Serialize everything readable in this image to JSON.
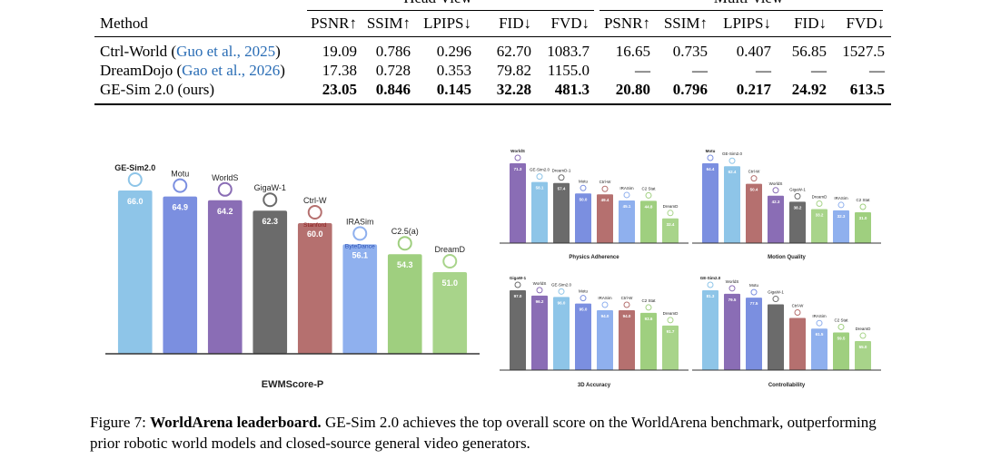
{
  "table": {
    "group_headers": [
      "Head View",
      "Multi-view"
    ],
    "columns": [
      "Method",
      "PSNR↑",
      "SSIM↑",
      "LPIPS↓",
      "FID↓",
      "FVD↓",
      "PSNR↑",
      "SSIM↑",
      "LPIPS↓",
      "FID↓",
      "FVD↓"
    ],
    "rows": [
      {
        "method": "Ctrl-World (",
        "cite": "Guo et al., 2025",
        "close": ")",
        "values": [
          "19.09",
          "0.786",
          "0.296",
          "62.70",
          "1083.7",
          "16.65",
          "0.735",
          "0.407",
          "56.85",
          "1527.5"
        ],
        "bold": false
      },
      {
        "method": "DreamDojo (",
        "cite": "Gao et al., 2026",
        "close": ")",
        "values": [
          "17.38",
          "0.728",
          "0.353",
          "79.82",
          "1155.0",
          "—",
          "—",
          "—",
          "—",
          "—"
        ],
        "bold": false
      },
      {
        "method": "GE-Sim 2.0 (ours)",
        "cite": "",
        "close": "",
        "values": [
          "23.05",
          "0.846",
          "0.145",
          "32.28",
          "481.3",
          "20.80",
          "0.796",
          "0.217",
          "24.92",
          "613.5"
        ],
        "bold": true
      }
    ]
  },
  "chart_data": [
    {
      "type": "bar",
      "xlabel": "EWMScore-P",
      "categories": [
        "GE-Sim2.0",
        "Motu",
        "WorldS",
        "GigaW-1",
        "Ctrl-W",
        "IRASim",
        "C2.5(a)",
        "DreamD"
      ],
      "values": [
        66.0,
        64.9,
        64.2,
        62.3,
        60.0,
        56.1,
        54.3,
        51.0
      ],
      "value_labels": [
        "66.0",
        "64.9",
        "64.2",
        "62.3",
        "60.0",
        "56.1",
        "54.3",
        "51.0"
      ],
      "sub_labels": {
        "Ctrl-W": "Stanford",
        "IRASim": "ByteDance"
      },
      "colors": [
        "#8ec5e8",
        "#7b8fe0",
        "#8a6db5",
        "#6b6b6b",
        "#b5706f",
        "#8fb0ee",
        "#9fcf7f",
        "#a8d48a"
      ]
    },
    {
      "type": "bar",
      "xlabel": "Physics Adherence",
      "categories": [
        "WorldS",
        "GE-Sim2.0",
        "DreamD-1",
        "Motu",
        "Ctrl-W",
        "IRASim",
        "C2 Stat",
        "DreamD"
      ],
      "values": [
        71.3,
        58.1,
        57.4,
        50.0,
        49.4,
        45.1,
        44.8,
        32.4
      ],
      "value_labels": [
        "71.3",
        "58.1",
        "57.4",
        "50.0",
        "49.4",
        "45.1",
        "44.8",
        "32.4"
      ],
      "colors": [
        "#8a6db5",
        "#8ec5e8",
        "#6b6b6b",
        "#7b8fe0",
        "#b5706f",
        "#8fb0ee",
        "#9fcf7f",
        "#a8d48a"
      ]
    },
    {
      "type": "bar",
      "xlabel": "Motion Quality",
      "categories": [
        "Motu",
        "GE-Sim2.0",
        "Ctrl-W",
        "WorldS",
        "GigaW-1",
        "DreamD",
        "IRASim",
        "C2 Stat"
      ],
      "values": [
        64.4,
        62.4,
        50.4,
        42.3,
        38.2,
        33.2,
        32.3,
        31.0
      ],
      "value_labels": [
        "64.4",
        "62.4",
        "50.4",
        "42.3",
        "38.2",
        "33.2",
        "32.3",
        "31.0"
      ],
      "colors": [
        "#7b8fe0",
        "#8ec5e8",
        "#b5706f",
        "#8a6db5",
        "#6b6b6b",
        "#a8d48a",
        "#8fb0ee",
        "#9fcf7f"
      ]
    },
    {
      "type": "bar",
      "xlabel": "3D Accuracy",
      "categories": [
        "GigaW-1",
        "WorldS",
        "GE-Sim2.0",
        "Motu",
        "IRASim",
        "Ctrl-W",
        "C2 Stat",
        "DreamD"
      ],
      "values": [
        97.0,
        96.2,
        96.0,
        95.0,
        94.0,
        94.0,
        93.6,
        91.7
      ],
      "value_labels": [
        "97.0",
        "96.2",
        "96.0",
        "95.0",
        "94.0",
        "94.0",
        "93.6",
        "91.7"
      ],
      "colors": [
        "#6b6b6b",
        "#8a6db5",
        "#8ec5e8",
        "#7b8fe0",
        "#8fb0ee",
        "#b5706f",
        "#9fcf7f",
        "#a8d48a"
      ]
    },
    {
      "type": "bar",
      "xlabel": "Controllability",
      "categories": [
        "GE-Sim2.0",
        "WorldS",
        "Motu",
        "GigaW-1",
        "Ctrl-W",
        "IRASim",
        "C2 Stat",
        "DreamD"
      ],
      "values": [
        81.3,
        79.5,
        77.5,
        74.0,
        67.0,
        61.5,
        59.5,
        55.0
      ],
      "value_labels": [
        "81.3",
        "79.5",
        "77.5",
        "",
        "",
        "61.5",
        "59.5",
        "55.0"
      ],
      "colors": [
        "#8ec5e8",
        "#8a6db5",
        "#7b8fe0",
        "#6b6b6b",
        "#b5706f",
        "#8fb0ee",
        "#9fcf7f",
        "#a8d48a"
      ]
    }
  ],
  "caption": {
    "prefix": "Figure 7: ",
    "lead": "WorldArena leaderboard.",
    "text": " GE-Sim 2.0 achieves the top overall score on the WorldArena benchmark, outperforming prior robotic world models and closed-source general video generators."
  }
}
